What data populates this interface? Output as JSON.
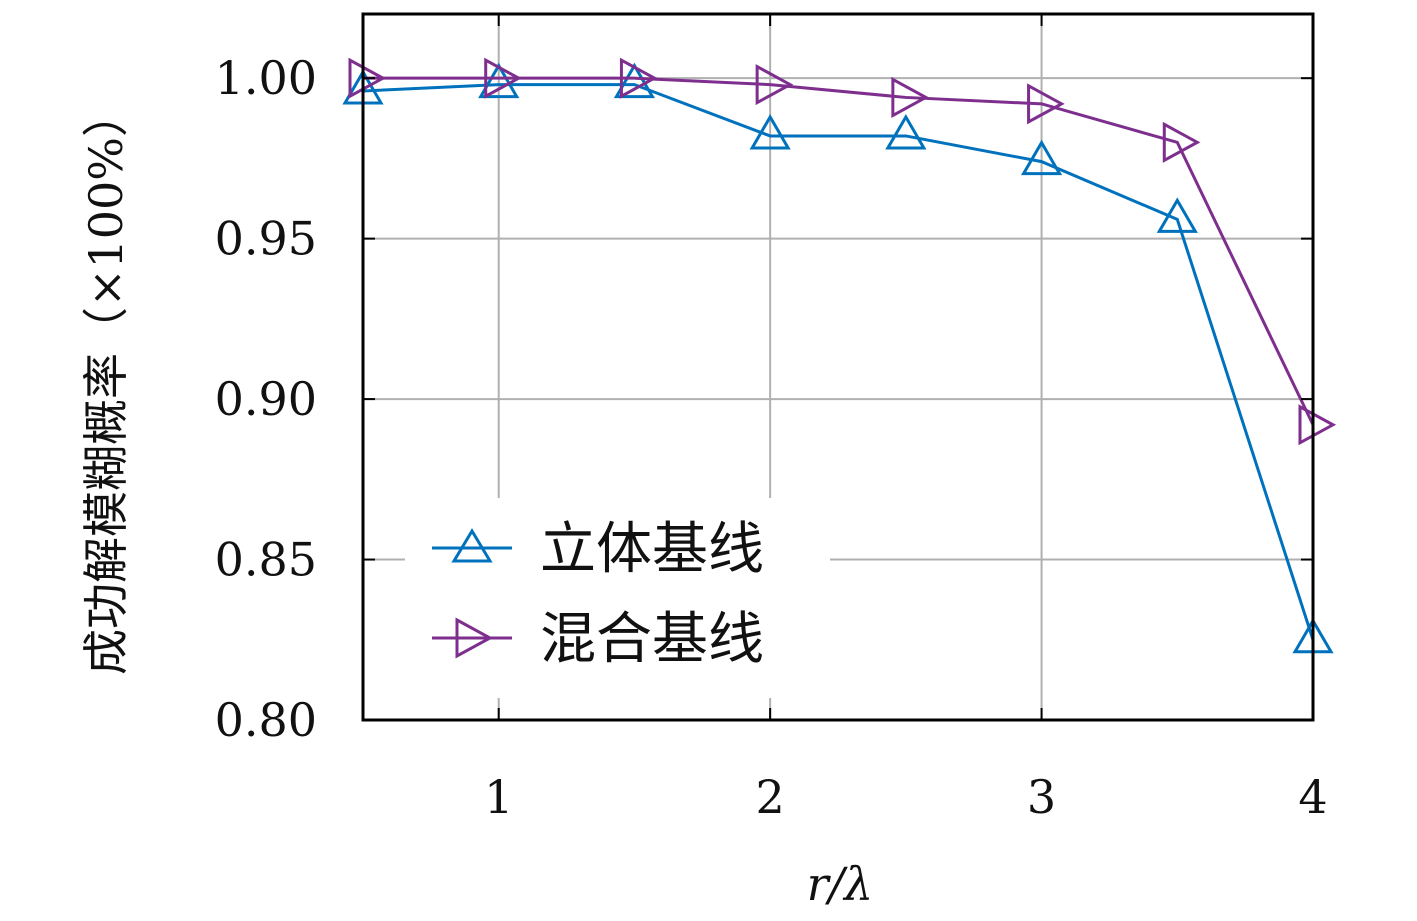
{
  "chart_data": {
    "type": "line",
    "title": "",
    "xlabel": "r/λ",
    "ylabel": "成功解模糊概率（×100%）",
    "xlim": [
      0.5,
      4
    ],
    "ylim": [
      0.8,
      1.02
    ],
    "xticks": [
      1,
      2,
      3,
      4
    ],
    "xtick_labels": [
      "1",
      "2",
      "3",
      "4"
    ],
    "yticks": [
      0.8,
      0.85,
      0.9,
      0.95,
      1.0
    ],
    "ytick_labels": [
      "0.80",
      "0.85",
      "0.90",
      "0.95",
      "1.00"
    ],
    "grid": true,
    "legend_position": "lower-left",
    "series": [
      {
        "name": "立体基线",
        "color": "#0072BD",
        "marker": "triangle-up",
        "x": [
          0.5,
          1.0,
          1.5,
          2.0,
          2.5,
          3.0,
          3.5,
          4.0
        ],
        "values": [
          0.996,
          0.998,
          0.998,
          0.982,
          0.982,
          0.974,
          0.956,
          0.825
        ]
      },
      {
        "name": "混合基线",
        "color": "#7E2F8E",
        "marker": "triangle-right",
        "x": [
          0.5,
          1.0,
          1.5,
          2.0,
          2.5,
          3.0,
          3.5,
          4.0
        ],
        "values": [
          1.0,
          1.0,
          1.0,
          0.998,
          0.994,
          0.992,
          0.98,
          0.892
        ]
      }
    ]
  }
}
